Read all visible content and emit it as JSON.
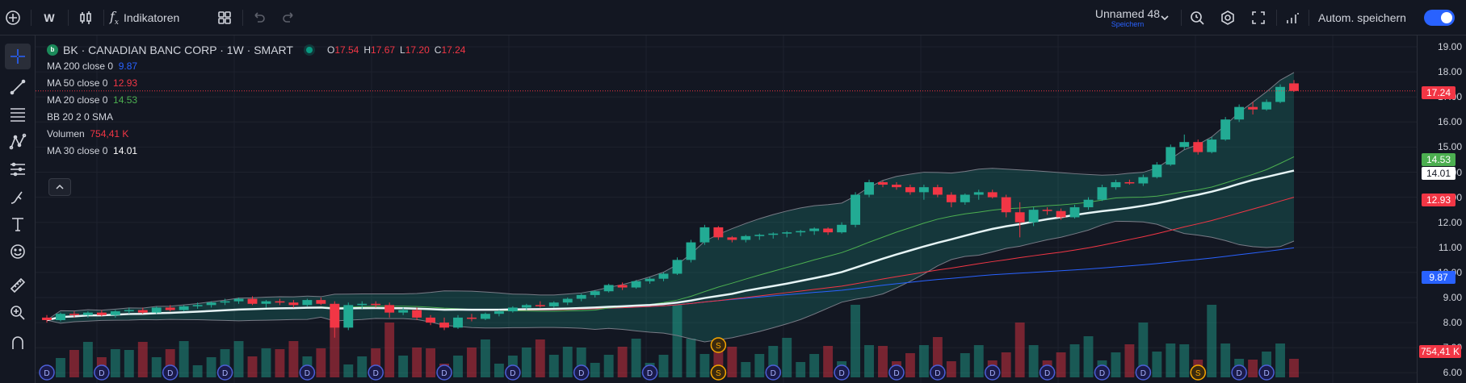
{
  "toolbar": {
    "interval": "W",
    "indicators_label": "Indikatoren",
    "layout_name": "Unnamed 48",
    "layout_status": "Speichern",
    "autosave_label": "Autom. speichern",
    "autosave_on": true
  },
  "legend": {
    "symbol_title": "BK · CANADIAN BANC CORP · 1W · SMART",
    "o_label": "O",
    "o_value": "17.54",
    "h_label": "H",
    "h_value": "17.67",
    "l_label": "L",
    "l_value": "17.20",
    "c_label": "C",
    "c_value": "17.24",
    "indicators": [
      {
        "name": "MA 200 close 0",
        "value": "9.87",
        "color": "#2962ff"
      },
      {
        "name": "MA 50 close 0",
        "value": "12.93",
        "color": "#f23645"
      },
      {
        "name": "MA 20 close 0",
        "value": "14.53",
        "color": "#4caf50"
      },
      {
        "name": "BB 20 2 0 SMA",
        "value": "",
        "color": "#d1d4dc"
      },
      {
        "name": "Volumen",
        "value": "754,41 K",
        "color": "#f23645"
      },
      {
        "name": "MA 30 close 0",
        "value": "14.01",
        "color": "#ffffff"
      }
    ]
  },
  "price_axis": {
    "ticks": [
      "19.00",
      "18.00",
      "17.00",
      "16.00",
      "15.00",
      "14.00",
      "13.00",
      "12.00",
      "11.00",
      "10.00",
      "9.00",
      "8.00",
      "7.00",
      "6.00"
    ],
    "badges": {
      "last": "17.24",
      "ma20": "14.53",
      "ma30": "14.01",
      "ma50": "12.93",
      "ma200": "9.87",
      "volume": "754,41 K"
    }
  },
  "chart_data": {
    "type": "candlestick",
    "interval": "1W",
    "candles": [
      [
        8.2,
        8.3,
        8.0,
        8.1
      ],
      [
        8.1,
        8.4,
        8.05,
        8.35
      ],
      [
        8.35,
        8.45,
        8.2,
        8.3
      ],
      [
        8.3,
        8.45,
        8.2,
        8.4
      ],
      [
        8.4,
        8.5,
        8.25,
        8.3
      ],
      [
        8.3,
        8.5,
        8.2,
        8.45
      ],
      [
        8.45,
        8.6,
        8.35,
        8.5
      ],
      [
        8.5,
        8.6,
        8.35,
        8.4
      ],
      [
        8.4,
        8.65,
        8.35,
        8.6
      ],
      [
        8.6,
        8.7,
        8.45,
        8.5
      ],
      [
        8.5,
        8.7,
        8.45,
        8.65
      ],
      [
        8.65,
        8.8,
        8.55,
        8.7
      ],
      [
        8.7,
        8.85,
        8.6,
        8.8
      ],
      [
        8.8,
        8.95,
        8.7,
        8.85
      ],
      [
        8.85,
        9.0,
        8.75,
        8.95
      ],
      [
        8.95,
        9.05,
        8.7,
        8.75
      ],
      [
        8.75,
        8.9,
        8.6,
        8.85
      ],
      [
        8.85,
        8.95,
        8.7,
        8.8
      ],
      [
        8.8,
        8.9,
        8.6,
        8.7
      ],
      [
        8.7,
        8.95,
        8.65,
        8.9
      ],
      [
        8.9,
        9.0,
        8.7,
        8.75
      ],
      [
        8.75,
        8.85,
        7.4,
        7.8
      ],
      [
        7.8,
        8.8,
        7.7,
        8.7
      ],
      [
        8.7,
        8.85,
        8.55,
        8.75
      ],
      [
        8.75,
        8.85,
        8.6,
        8.7
      ],
      [
        8.7,
        8.8,
        8.2,
        8.4
      ],
      [
        8.4,
        8.6,
        8.3,
        8.5
      ],
      [
        8.5,
        8.6,
        8.1,
        8.2
      ],
      [
        8.2,
        8.3,
        7.9,
        8.0
      ],
      [
        8.0,
        8.2,
        7.7,
        7.8
      ],
      [
        7.8,
        8.3,
        7.75,
        8.2
      ],
      [
        8.2,
        8.35,
        8.05,
        8.15
      ],
      [
        8.15,
        8.4,
        8.1,
        8.35
      ],
      [
        8.35,
        8.5,
        8.25,
        8.45
      ],
      [
        8.45,
        8.65,
        8.4,
        8.6
      ],
      [
        8.6,
        8.75,
        8.5,
        8.7
      ],
      [
        8.7,
        8.85,
        8.6,
        8.65
      ],
      [
        8.65,
        8.85,
        8.6,
        8.8
      ],
      [
        8.8,
        9.0,
        8.7,
        8.95
      ],
      [
        8.95,
        9.15,
        8.85,
        9.1
      ],
      [
        9.1,
        9.3,
        9.0,
        9.25
      ],
      [
        9.25,
        9.55,
        9.2,
        9.5
      ],
      [
        9.5,
        9.6,
        9.3,
        9.4
      ],
      [
        9.4,
        9.7,
        9.35,
        9.65
      ],
      [
        9.65,
        9.8,
        9.55,
        9.75
      ],
      [
        9.75,
        10.0,
        9.65,
        9.95
      ],
      [
        9.95,
        10.6,
        9.9,
        10.5
      ],
      [
        10.5,
        11.3,
        10.4,
        11.2
      ],
      [
        11.2,
        11.9,
        11.1,
        11.8
      ],
      [
        11.8,
        11.85,
        11.3,
        11.4
      ],
      [
        11.4,
        11.45,
        11.2,
        11.3
      ],
      [
        11.3,
        11.5,
        11.2,
        11.45
      ],
      [
        11.45,
        11.55,
        11.3,
        11.5
      ],
      [
        11.5,
        11.6,
        11.35,
        11.55
      ],
      [
        11.55,
        11.65,
        11.4,
        11.6
      ],
      [
        11.6,
        11.7,
        11.45,
        11.65
      ],
      [
        11.65,
        11.8,
        11.5,
        11.75
      ],
      [
        11.75,
        11.8,
        11.5,
        11.6
      ],
      [
        11.6,
        12.0,
        11.55,
        11.9
      ],
      [
        11.9,
        13.2,
        11.8,
        13.1
      ],
      [
        13.1,
        13.7,
        13.0,
        13.6
      ],
      [
        13.6,
        13.65,
        13.4,
        13.5
      ],
      [
        13.5,
        13.6,
        13.3,
        13.4
      ],
      [
        13.4,
        13.5,
        13.1,
        13.2
      ],
      [
        13.2,
        13.5,
        12.9,
        13.4
      ],
      [
        13.4,
        13.5,
        13.0,
        13.1
      ],
      [
        13.1,
        13.2,
        12.6,
        12.8
      ],
      [
        12.8,
        13.15,
        12.7,
        13.1
      ],
      [
        13.1,
        13.3,
        12.9,
        13.2
      ],
      [
        13.2,
        13.3,
        12.95,
        13.0
      ],
      [
        13.0,
        13.1,
        12.2,
        12.4
      ],
      [
        12.4,
        12.8,
        11.4,
        12.0
      ],
      [
        12.0,
        12.6,
        11.85,
        12.5
      ],
      [
        12.5,
        12.6,
        12.3,
        12.45
      ],
      [
        12.45,
        12.55,
        12.1,
        12.2
      ],
      [
        12.2,
        12.7,
        12.15,
        12.6
      ],
      [
        12.6,
        13.0,
        12.5,
        12.9
      ],
      [
        12.9,
        13.5,
        12.85,
        13.4
      ],
      [
        13.4,
        13.7,
        13.3,
        13.6
      ],
      [
        13.6,
        13.7,
        13.5,
        13.55
      ],
      [
        13.55,
        13.9,
        13.45,
        13.8
      ],
      [
        13.8,
        14.4,
        13.75,
        14.3
      ],
      [
        14.3,
        15.1,
        14.25,
        15.0
      ],
      [
        15.0,
        15.5,
        14.9,
        15.2
      ],
      [
        15.2,
        15.3,
        14.7,
        14.8
      ],
      [
        14.8,
        15.4,
        14.75,
        15.3
      ],
      [
        15.3,
        16.2,
        15.25,
        16.1
      ],
      [
        16.1,
        16.7,
        16.0,
        16.6
      ],
      [
        16.6,
        16.8,
        16.3,
        16.5
      ],
      [
        16.5,
        16.9,
        16.45,
        16.8
      ],
      [
        16.8,
        17.5,
        16.75,
        17.4
      ],
      [
        17.54,
        17.67,
        17.2,
        17.24
      ]
    ],
    "volume_last": 754410
  }
}
